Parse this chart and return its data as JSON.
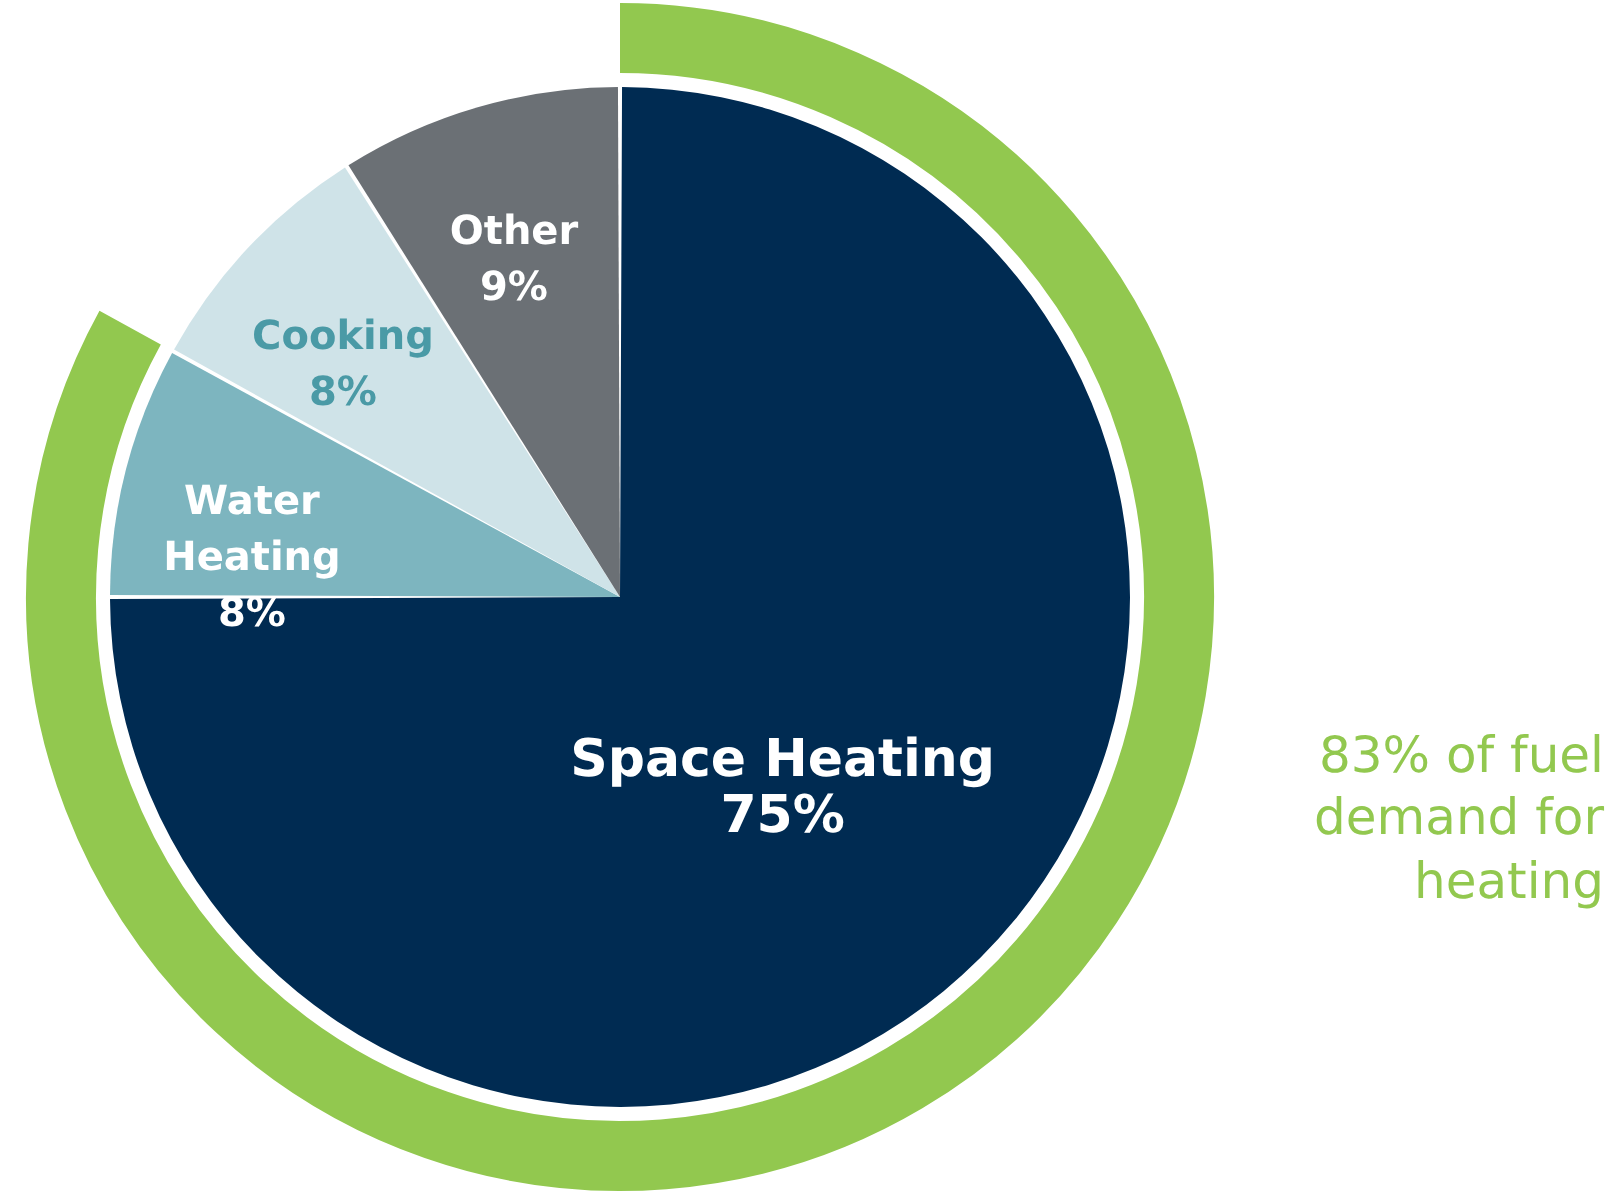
{
  "chart_data": {
    "type": "pie",
    "categories": [
      "Space Heating",
      "Water Heating",
      "Cooking",
      "Other"
    ],
    "values": [
      75,
      8,
      8,
      9
    ],
    "value_labels": [
      "75%",
      "8%",
      "8%",
      "9%"
    ],
    "colors": [
      "#002b52",
      "#7db5bf",
      "#cfe3e8",
      "#6b7075"
    ],
    "data_labels": true,
    "annotations": [
      "83% of fuel demand for heating"
    ]
  }
}
